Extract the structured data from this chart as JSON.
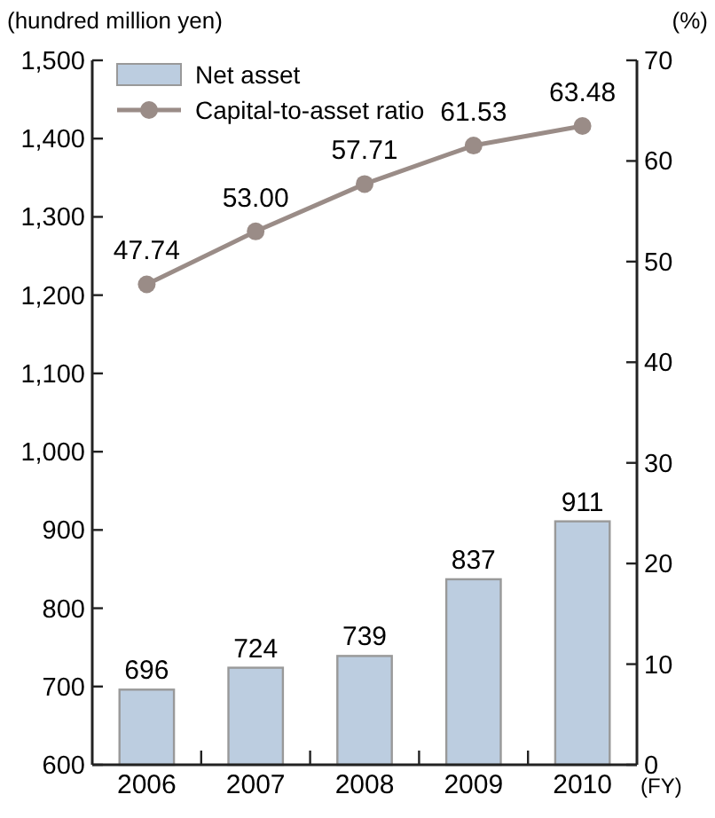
{
  "chart_data": {
    "type": "bar",
    "ylabel": "(hundred million yen)",
    "y2label": "(%)",
    "xlabel": "(FY)",
    "categories": [
      "2006",
      "2007",
      "2008",
      "2009",
      "2010"
    ],
    "series": [
      {
        "name": "Net asset",
        "color": "#bccde0",
        "values": [
          696,
          724,
          739,
          837,
          911
        ]
      },
      {
        "name": "Capital-to-asset ratio",
        "type": "line",
        "axis": "y2",
        "color": "#9a8c87",
        "values": [
          47.74,
          53.0,
          57.71,
          61.53,
          63.48
        ],
        "value_labels": [
          "47.74",
          "53.00",
          "57.71",
          "61.53",
          "63.48"
        ]
      }
    ],
    "ylim": [
      600,
      1500
    ],
    "yticks": [
      600,
      700,
      800,
      900,
      {
        "value": 1000,
        "label": "1,000"
      },
      {
        "value": 1100,
        "label": "1,100"
      },
      {
        "value": 1200,
        "label": "1,200"
      },
      {
        "value": 1300,
        "label": "1,300"
      },
      {
        "value": 1400,
        "label": "1,400"
      },
      {
        "value": 1500,
        "label": "1,500"
      }
    ],
    "y2lim": [
      0,
      70
    ],
    "y2ticks": [
      0,
      10,
      20,
      30,
      40,
      50,
      60,
      70
    ],
    "data_labels": true,
    "marker": "circle",
    "legend": "top left",
    "grid": false
  }
}
